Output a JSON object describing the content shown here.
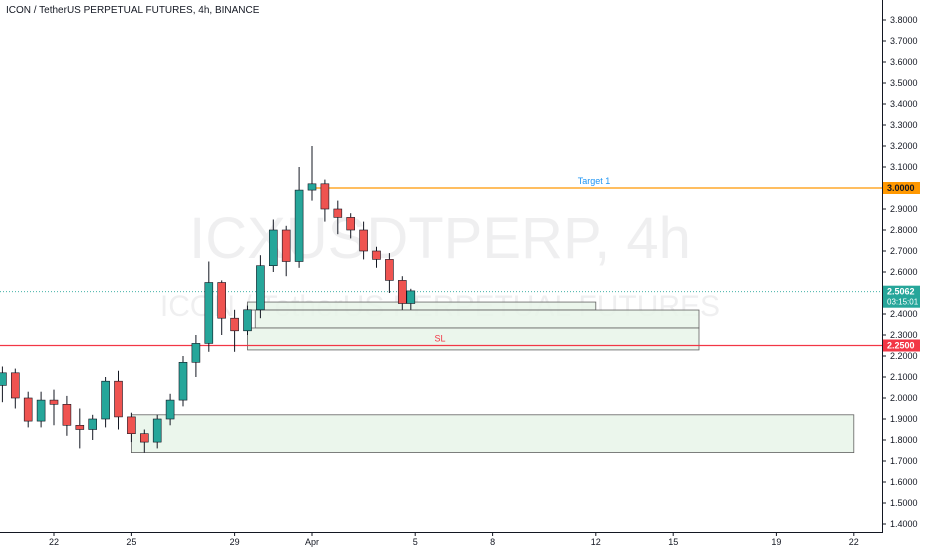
{
  "title": "ICON / TetherUS PERPETUAL FUTURES, 4h, BINANCE",
  "watermark": {
    "line1": "ICXUSDTPERP, 4h",
    "line2": "ICON / TetherUS PERPETUAL FUTURES"
  },
  "colors": {
    "up": "#26a69a",
    "down": "#ef5350",
    "target": "#ff9800",
    "stop": "#f23645",
    "zone_fill": "#e7f5e9",
    "zone_border": "#616161",
    "price_line": "#26a69a",
    "target_text": "#2196f3",
    "sl_text": "#f23645"
  },
  "chart_data": {
    "type": "candlestick",
    "exchange": "BINANCE",
    "symbol": "ICXUSDTPERP",
    "timeframe": "4h",
    "ylim": [
      1.4,
      3.8
    ],
    "y_ticks": [
      "3.8000",
      "3.7000",
      "3.6000",
      "3.5000",
      "3.4000",
      "3.3000",
      "3.2000",
      "3.1000",
      "3.0000",
      "2.9000",
      "2.8000",
      "2.7000",
      "2.6000",
      "2.5000",
      "2.4000",
      "2.3000",
      "2.2000",
      "2.1000",
      "2.0000",
      "1.9000",
      "1.8000",
      "1.7000",
      "1.6000",
      "1.5000",
      "1.4000"
    ],
    "x_ticks": [
      {
        "label": "22",
        "day": 22
      },
      {
        "label": "25",
        "day": 25
      },
      {
        "label": "29",
        "day": 29
      },
      {
        "label": "Apr",
        "day": 32
      },
      {
        "label": "5",
        "day": 36
      },
      {
        "label": "8",
        "day": 39
      },
      {
        "label": "12",
        "day": 43
      },
      {
        "label": "15",
        "day": 46
      },
      {
        "label": "19",
        "day": 50
      },
      {
        "label": "22",
        "day": 53
      }
    ],
    "candles_daily_ohlc": [
      [
        20.0,
        2.06,
        2.15,
        1.98,
        2.12
      ],
      [
        20.5,
        2.12,
        2.14,
        1.95,
        2.0
      ],
      [
        21.0,
        2.0,
        2.03,
        1.86,
        1.89
      ],
      [
        21.5,
        1.89,
        2.03,
        1.86,
        1.99
      ],
      [
        22.0,
        1.99,
        2.04,
        1.87,
        1.97
      ],
      [
        22.5,
        1.97,
        2.01,
        1.82,
        1.87
      ],
      [
        23.0,
        1.87,
        1.95,
        1.76,
        1.85
      ],
      [
        23.5,
        1.85,
        1.92,
        1.8,
        1.9
      ],
      [
        24.0,
        1.9,
        2.1,
        1.86,
        2.08
      ],
      [
        24.5,
        2.08,
        2.13,
        1.85,
        1.91
      ],
      [
        25.0,
        1.91,
        1.93,
        1.79,
        1.83
      ],
      [
        25.5,
        1.83,
        1.85,
        1.74,
        1.79
      ],
      [
        26.0,
        1.79,
        1.92,
        1.76,
        1.9
      ],
      [
        26.5,
        1.9,
        2.02,
        1.87,
        1.99
      ],
      [
        27.0,
        1.99,
        2.2,
        1.96,
        2.17
      ],
      [
        27.5,
        2.17,
        2.3,
        2.1,
        2.26
      ],
      [
        28.0,
        2.26,
        2.65,
        2.22,
        2.55
      ],
      [
        28.5,
        2.55,
        2.56,
        2.3,
        2.38
      ],
      [
        29.0,
        2.38,
        2.42,
        2.22,
        2.32
      ],
      [
        29.5,
        2.32,
        2.44,
        2.3,
        2.42
      ],
      [
        30.0,
        2.42,
        2.68,
        2.38,
        2.63
      ],
      [
        30.5,
        2.63,
        2.85,
        2.6,
        2.8
      ],
      [
        31.0,
        2.8,
        2.82,
        2.58,
        2.65
      ],
      [
        31.5,
        2.65,
        3.1,
        2.62,
        2.99
      ],
      [
        32.0,
        2.99,
        3.2,
        2.94,
        3.02
      ],
      [
        32.5,
        3.02,
        3.04,
        2.84,
        2.9
      ],
      [
        33.0,
        2.9,
        2.94,
        2.78,
        2.86
      ],
      [
        33.5,
        2.86,
        2.88,
        2.76,
        2.8
      ],
      [
        34.0,
        2.8,
        2.84,
        2.66,
        2.7
      ],
      [
        34.5,
        2.7,
        2.72,
        2.62,
        2.66
      ],
      [
        35.0,
        2.66,
        2.69,
        2.5,
        2.56
      ],
      [
        35.5,
        2.56,
        2.58,
        2.42,
        2.45
      ],
      [
        35.83,
        2.45,
        2.52,
        2.42,
        2.51
      ]
    ],
    "zones": [
      {
        "name": "demand-zone-upper",
        "x_start": 29.5,
        "x_end": 43.0,
        "top": 2.4569,
        "bottom": 2.4189
      },
      {
        "name": "demand-zone-mid",
        "x_start": 29.8,
        "x_end": 47.0,
        "top": 2.4189,
        "bottom": 2.3334
      },
      {
        "name": "demand-zone-lower",
        "x_start": 29.5,
        "x_end": 47.0,
        "top": 2.3334,
        "bottom": 2.2289
      },
      {
        "name": "demand-zone-bottom",
        "x_start": 25.0,
        "x_end": 53.0,
        "top": 1.92,
        "bottom": 1.74
      }
    ],
    "levels": [
      {
        "name": "target-1",
        "label": "Target 1",
        "value": 3.0,
        "price_label": "3.0000",
        "x_start": 32.0
      },
      {
        "name": "stop-loss",
        "label": "SL",
        "value": 2.25,
        "price_label": "2.2500",
        "x_start": 20.0
      }
    ],
    "last_price": {
      "value": 2.5062,
      "label": "2.5062",
      "countdown": "03:15:01"
    }
  }
}
